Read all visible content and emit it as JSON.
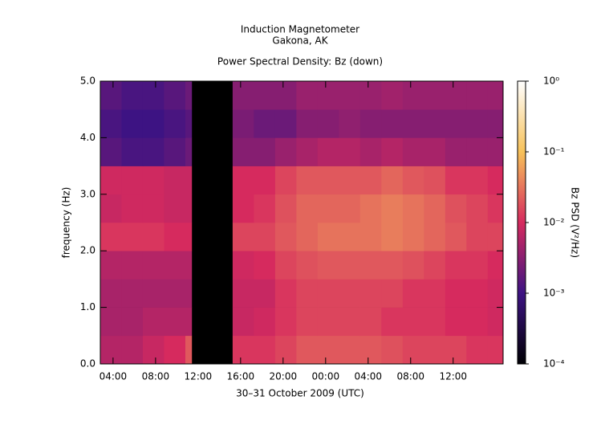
{
  "chart_data": {
    "type": "heatmap",
    "title": "Induction Magnetometer",
    "subtitle": "Gakona, AK",
    "plot_title": "Power Spectral Density: Bz (down)",
    "xlabel": "30–31 October 2009 (UTC)",
    "ylabel": "frequency (Hz)",
    "colorbar_label": "Bz PSD (V²/Hz)",
    "xlim": [
      2.8,
      40.7
    ],
    "xticks": [
      {
        "value": 4,
        "label": "04:00"
      },
      {
        "value": 8,
        "label": "08:00"
      },
      {
        "value": 12,
        "label": "12:00"
      },
      {
        "value": 16,
        "label": "16:00"
      },
      {
        "value": 20,
        "label": "20:00"
      },
      {
        "value": 24,
        "label": "00:00"
      },
      {
        "value": 28,
        "label": "04:00"
      },
      {
        "value": 32,
        "label": "08:00"
      },
      {
        "value": 36,
        "label": "12:00"
      }
    ],
    "ylim": [
      0,
      5
    ],
    "yticks": [
      {
        "value": 0,
        "label": "0.0"
      },
      {
        "value": 1,
        "label": "1.0"
      },
      {
        "value": 2,
        "label": "2.0"
      },
      {
        "value": 3,
        "label": "3.0"
      },
      {
        "value": 4,
        "label": "4.0"
      },
      {
        "value": 5,
        "label": "5.0"
      }
    ],
    "x_edges": [
      2.8,
      4.8,
      6.8,
      8.8,
      10.8,
      11.4,
      15.25,
      17.25,
      19.25,
      21.25,
      23.25,
      25.25,
      27.25,
      29.25,
      31.25,
      33.25,
      35.25,
      37.25,
      39.25,
      40.7
    ],
    "y_edges": [
      0,
      0.5,
      1,
      1.5,
      2,
      2.5,
      3,
      3.5,
      4,
      4.5,
      5
    ],
    "z": [
      [
        0.006,
        0.006,
        0.008,
        0.01,
        0.02,
        null,
        0.012,
        0.012,
        0.015,
        0.02,
        0.02,
        0.02,
        0.02,
        0.018,
        0.015,
        0.015,
        0.015,
        0.012,
        0.012
      ],
      [
        0.005,
        0.005,
        0.006,
        0.006,
        0.006,
        null,
        0.008,
        0.009,
        0.012,
        0.015,
        0.015,
        0.015,
        0.015,
        0.012,
        0.012,
        0.012,
        0.01,
        0.01,
        0.009
      ],
      [
        0.005,
        0.005,
        0.005,
        0.005,
        0.005,
        null,
        0.008,
        0.008,
        0.012,
        0.015,
        0.015,
        0.015,
        0.015,
        0.015,
        0.012,
        0.012,
        0.01,
        0.01,
        0.009
      ],
      [
        0.006,
        0.006,
        0.006,
        0.006,
        0.006,
        null,
        0.009,
        0.01,
        0.015,
        0.018,
        0.02,
        0.02,
        0.02,
        0.02,
        0.018,
        0.015,
        0.012,
        0.012,
        0.01
      ],
      [
        0.012,
        0.012,
        0.012,
        0.01,
        0.01,
        null,
        0.015,
        0.015,
        0.02,
        0.025,
        0.03,
        0.03,
        0.03,
        0.035,
        0.03,
        0.025,
        0.02,
        0.015,
        0.015
      ],
      [
        0.008,
        0.009,
        0.009,
        0.008,
        0.008,
        null,
        0.01,
        0.012,
        0.018,
        0.025,
        0.025,
        0.025,
        0.03,
        0.035,
        0.03,
        0.025,
        0.018,
        0.015,
        0.012
      ],
      [
        0.009,
        0.009,
        0.009,
        0.008,
        0.008,
        null,
        0.01,
        0.01,
        0.015,
        0.02,
        0.02,
        0.02,
        0.02,
        0.025,
        0.02,
        0.018,
        0.012,
        0.012,
        0.01
      ],
      [
        0.0015,
        0.0012,
        0.0012,
        0.0015,
        0.002,
        null,
        0.003,
        0.003,
        0.004,
        0.005,
        0.006,
        0.006,
        0.005,
        0.006,
        0.005,
        0.005,
        0.004,
        0.004,
        0.004
      ],
      [
        0.0012,
        0.001,
        0.001,
        0.0012,
        0.0015,
        null,
        0.0025,
        0.002,
        0.002,
        0.003,
        0.003,
        0.0035,
        0.003,
        0.003,
        0.003,
        0.003,
        0.003,
        0.003,
        0.003
      ],
      [
        0.0015,
        0.0012,
        0.0012,
        0.0015,
        0.002,
        null,
        0.003,
        0.003,
        0.003,
        0.004,
        0.004,
        0.004,
        0.004,
        0.0045,
        0.004,
        0.004,
        0.004,
        0.004,
        0.004
      ]
    ],
    "zlim": [
      0.0001,
      1
    ],
    "zscale": "log",
    "zticks": [
      {
        "value": 0.0001,
        "label": "10⁻⁴"
      },
      {
        "value": 0.001,
        "label": "10⁻³"
      },
      {
        "value": 0.01,
        "label": "10⁻²"
      },
      {
        "value": 0.1,
        "label": "10⁻¹"
      },
      {
        "value": 1,
        "label": "10⁰"
      }
    ],
    "colormap": [
      "#000004",
      "#3d1383",
      "#d62a5e",
      "#f7c25a",
      "#ffffff"
    ],
    "missing_color": "#000000"
  }
}
